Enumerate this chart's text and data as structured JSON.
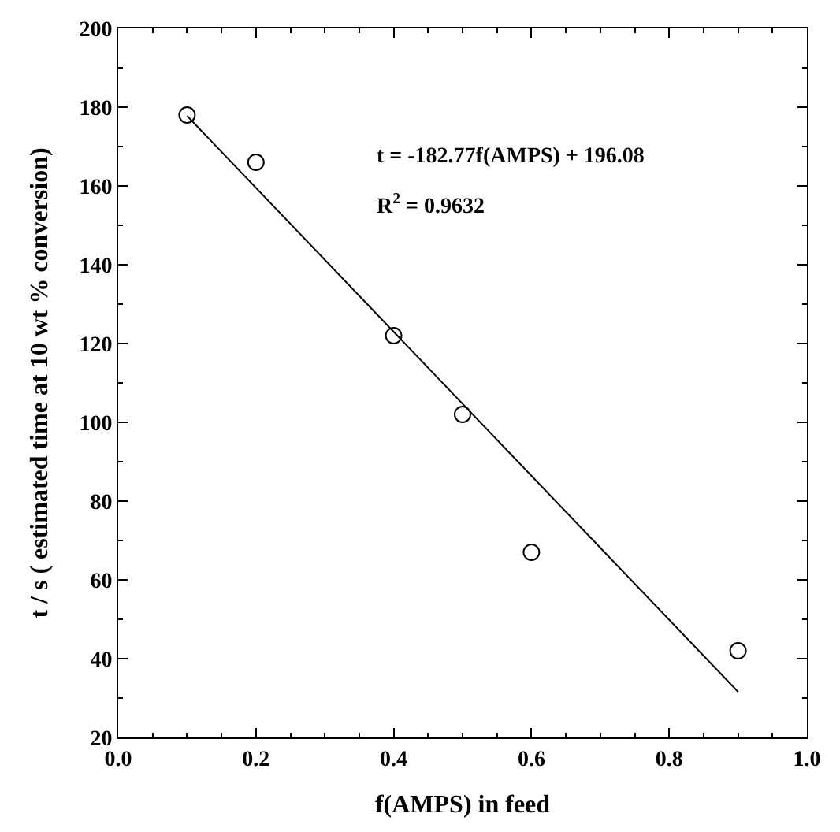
{
  "chart_data": {
    "type": "scatter",
    "xlabel": "f(AMPS) in feed",
    "ylabel": "t / s ( estimated time at 10 wt % conversion)",
    "series": [
      {
        "color": "#000000",
        "x": [
          0.1,
          0.2,
          0.4,
          0.5,
          0.6,
          0.9
        ],
        "values": [
          178,
          166,
          122,
          102,
          67,
          42
        ],
        "marker": "circle"
      },
      {
        "type": "line",
        "color": "#000000",
        "x": [
          0.1,
          0.9
        ],
        "values": [
          177.8,
          31.6
        ],
        "marker": "none",
        "line_style": "solid"
      }
    ],
    "annotations": [
      "t = -182.77f(AMPS) + 196.08",
      "R$^{2}$ = 0.9632"
    ],
    "xlim": [
      0.0,
      1.0
    ],
    "xticks": [
      {
        "value": 0.0,
        "label": "0.0"
      },
      0.2,
      0.4,
      0.6,
      0.8,
      {
        "value": 1.0,
        "label": "1.0"
      }
    ],
    "ylim": [
      20,
      200
    ],
    "yticks": [
      20,
      40,
      60,
      80,
      100,
      120,
      140,
      160,
      180,
      200
    ]
  }
}
